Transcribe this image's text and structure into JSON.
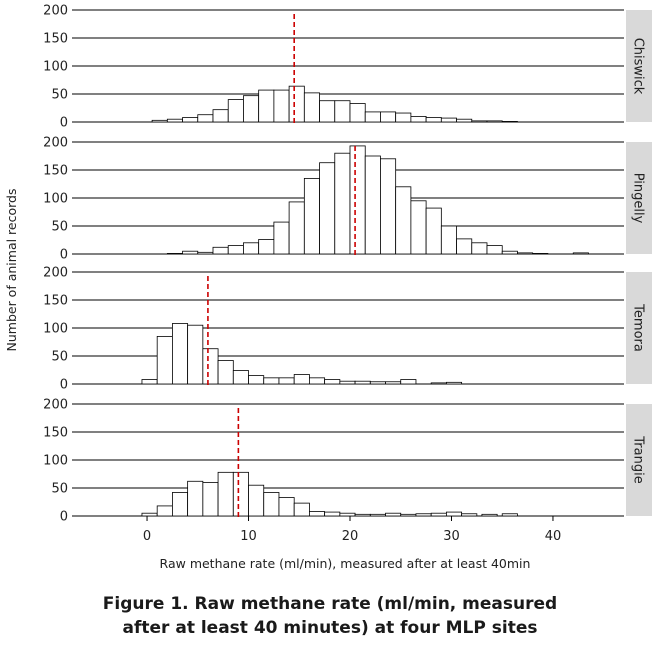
{
  "caption": {
    "line1": "Figure 1. Raw methane rate (ml/min, measured",
    "line2": "after at least 40 minutes) at four MLP sites"
  },
  "chart_data": {
    "type": "bar",
    "subtype": "faceted-histogram",
    "xlabel": "Raw methane rate (ml/min), measured after at least 40min",
    "ylabel": "Number of animal records",
    "xlim": [
      -7,
      47
    ],
    "xticks": [
      0,
      10,
      20,
      30,
      40
    ],
    "ylim": [
      0,
      200
    ],
    "yticks": [
      0,
      50,
      100,
      150,
      200
    ],
    "bin_width": 1.5,
    "grid": true,
    "median_line_color": "#cc0000",
    "bar_fill": "#ffffff",
    "bar_stroke": "#000000",
    "strip_fill": "#d9d9d9",
    "panels": [
      {
        "name": "Chiswick",
        "median": 14.5,
        "bins": [
          [
            0.5,
            3
          ],
          [
            2,
            5
          ],
          [
            3.5,
            8
          ],
          [
            5,
            13
          ],
          [
            6.5,
            22
          ],
          [
            8,
            40
          ],
          [
            9.5,
            47
          ],
          [
            11,
            57
          ],
          [
            12.5,
            57
          ],
          [
            14,
            64
          ],
          [
            15.5,
            52
          ],
          [
            17,
            38
          ],
          [
            18.5,
            38
          ],
          [
            20,
            33
          ],
          [
            21.5,
            18
          ],
          [
            23,
            18
          ],
          [
            24.5,
            16
          ],
          [
            26,
            10
          ],
          [
            27.5,
            8
          ],
          [
            29,
            7
          ],
          [
            30.5,
            5
          ],
          [
            32,
            2
          ],
          [
            33.5,
            2
          ],
          [
            35,
            1
          ]
        ]
      },
      {
        "name": "Pingelly",
        "median": 20.5,
        "bins": [
          [
            2,
            1
          ],
          [
            3.5,
            5
          ],
          [
            5,
            3
          ],
          [
            6.5,
            12
          ],
          [
            8,
            15
          ],
          [
            9.5,
            20
          ],
          [
            11,
            26
          ],
          [
            12.5,
            57
          ],
          [
            14,
            93
          ],
          [
            15.5,
            135
          ],
          [
            17,
            163
          ],
          [
            18.5,
            180
          ],
          [
            20,
            193
          ],
          [
            21.5,
            175
          ],
          [
            23,
            170
          ],
          [
            24.5,
            120
          ],
          [
            26,
            95
          ],
          [
            27.5,
            82
          ],
          [
            29,
            50
          ],
          [
            30.5,
            27
          ],
          [
            32,
            20
          ],
          [
            33.5,
            15
          ],
          [
            35,
            5
          ],
          [
            36.5,
            2
          ],
          [
            38,
            1
          ],
          [
            42,
            2
          ]
        ]
      },
      {
        "name": "Temora",
        "median": 6,
        "bins": [
          [
            -0.5,
            8
          ],
          [
            1,
            85
          ],
          [
            2.5,
            108
          ],
          [
            4,
            105
          ],
          [
            5.5,
            63
          ],
          [
            7,
            42
          ],
          [
            8.5,
            24
          ],
          [
            10,
            15
          ],
          [
            11.5,
            11
          ],
          [
            13,
            11
          ],
          [
            14.5,
            17
          ],
          [
            16,
            11
          ],
          [
            17.5,
            8
          ],
          [
            19,
            5
          ],
          [
            20.5,
            5
          ],
          [
            22,
            4
          ],
          [
            23.5,
            4
          ],
          [
            25,
            8
          ],
          [
            28,
            2
          ],
          [
            29.5,
            3
          ]
        ]
      },
      {
        "name": "Trangie",
        "median": 9,
        "bins": [
          [
            -0.5,
            5
          ],
          [
            1,
            18
          ],
          [
            2.5,
            42
          ],
          [
            4,
            62
          ],
          [
            5.5,
            60
          ],
          [
            7,
            78
          ],
          [
            8.5,
            78
          ],
          [
            10,
            55
          ],
          [
            11.5,
            42
          ],
          [
            13,
            33
          ],
          [
            14.5,
            23
          ],
          [
            16,
            8
          ],
          [
            17.5,
            7
          ],
          [
            19,
            5
          ],
          [
            20.5,
            3
          ],
          [
            22,
            3
          ],
          [
            23.5,
            5
          ],
          [
            25,
            3
          ],
          [
            26.5,
            4
          ],
          [
            28,
            5
          ],
          [
            29.5,
            7
          ],
          [
            31,
            4
          ],
          [
            33,
            3
          ],
          [
            35,
            4
          ]
        ]
      }
    ]
  }
}
